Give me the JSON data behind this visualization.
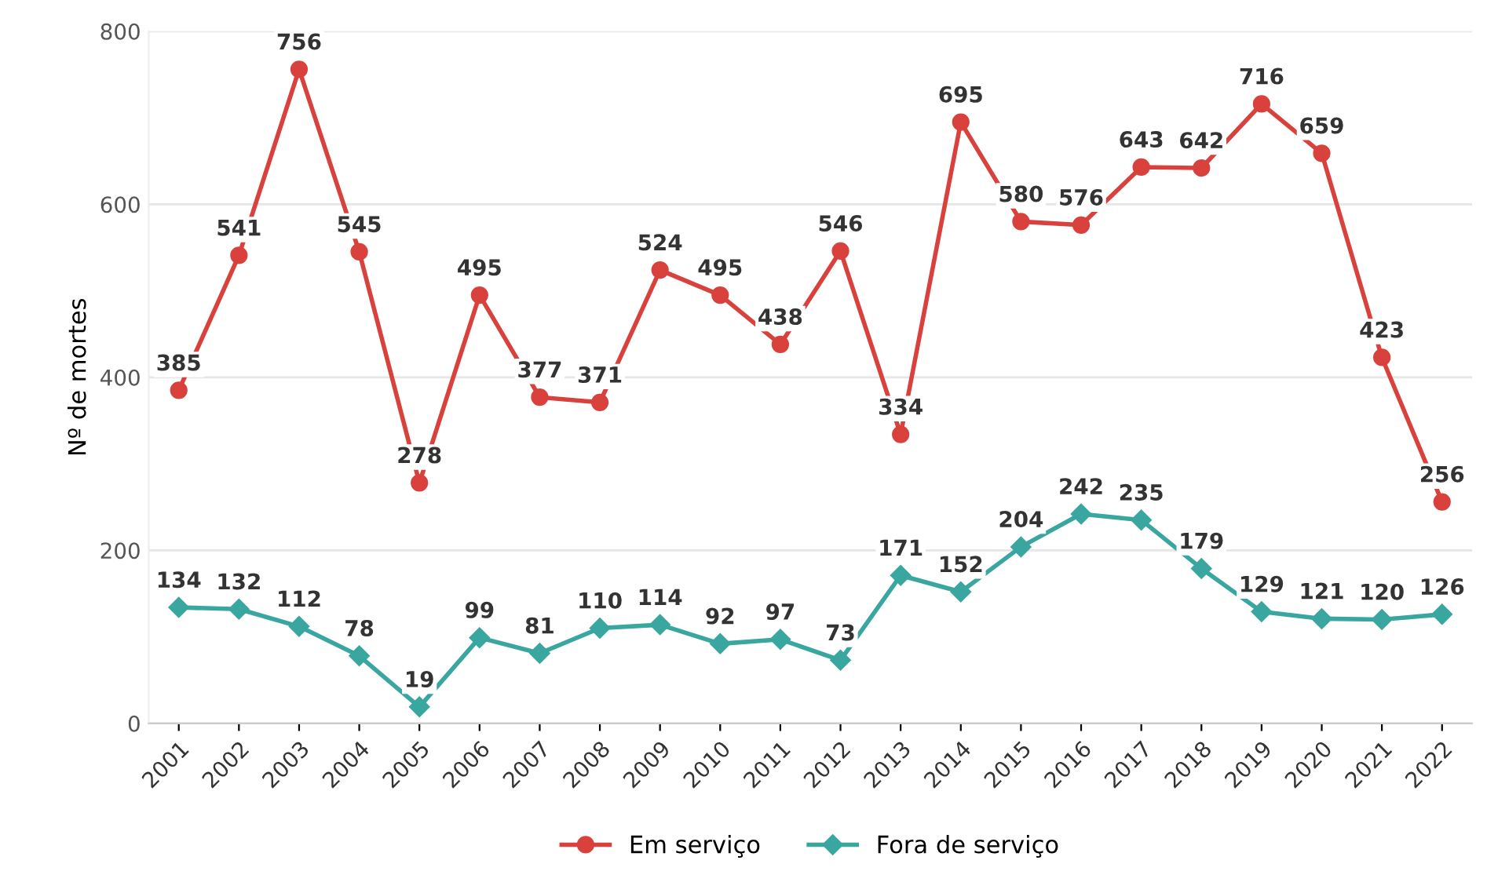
{
  "chart_data": {
    "type": "line",
    "ylabel": "Nº de mortes",
    "categories": [
      "2001",
      "2002",
      "2003",
      "2004",
      "2005",
      "2006",
      "2007",
      "2008",
      "2009",
      "2010",
      "2011",
      "2012",
      "2013",
      "2014",
      "2015",
      "2016",
      "2017",
      "2018",
      "2019",
      "2020",
      "2021",
      "2022"
    ],
    "series": [
      {
        "name": "Em serviço",
        "color": "#d9413c",
        "marker": "circle",
        "values": [
          385,
          541,
          756,
          545,
          278,
          495,
          377,
          371,
          524,
          495,
          438,
          546,
          334,
          695,
          580,
          576,
          643,
          642,
          716,
          659,
          423,
          256
        ]
      },
      {
        "name": "Fora de serviço",
        "color": "#3aa6a0",
        "marker": "diamond",
        "values": [
          134,
          132,
          112,
          78,
          19,
          99,
          81,
          110,
          114,
          92,
          97,
          73,
          171,
          152,
          204,
          242,
          235,
          179,
          129,
          121,
          120,
          126
        ]
      }
    ],
    "ylim": [
      0,
      800
    ],
    "yticks": [
      0,
      200,
      400,
      600,
      800
    ],
    "grid": "y",
    "legend": "bottom",
    "data_labels": true,
    "line_style": "solid"
  }
}
